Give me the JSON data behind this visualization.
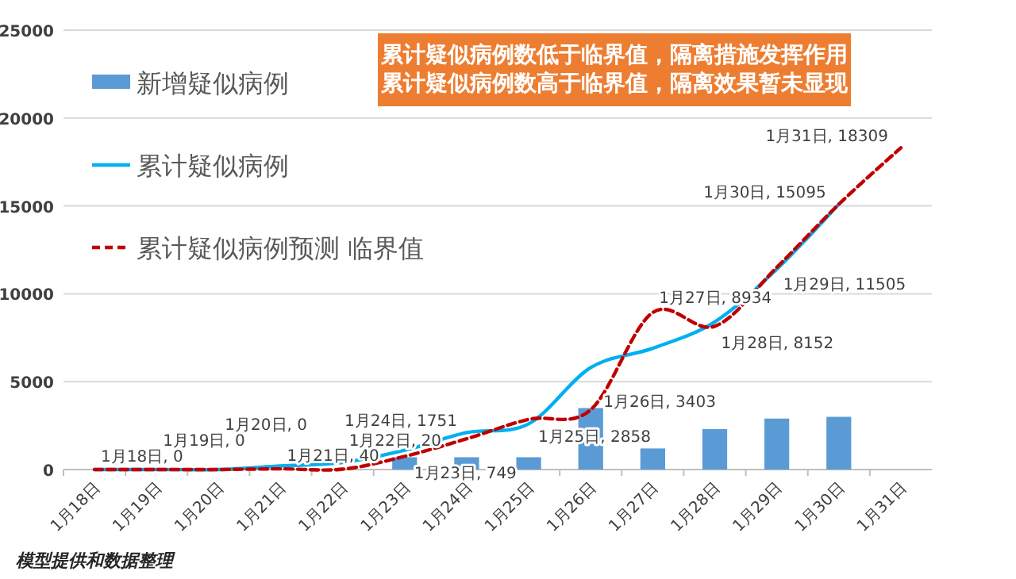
{
  "chart_data": {
    "type": "bar",
    "categories": [
      "1月18日",
      "1月19日",
      "1月20日",
      "1月21日",
      "1月22日",
      "1月23日",
      "1月24日",
      "1月25日",
      "1月26日",
      "1月27日",
      "1月28日",
      "1月29日",
      "1月30日",
      "1月31日"
    ],
    "series": [
      {
        "name": "新增疑似病例",
        "color": "#5b9bd5",
        "values": [
          null,
          null,
          null,
          null,
          null,
          700,
          700,
          700,
          3500,
          1200,
          2300,
          2900,
          3000,
          null
        ]
      },
      {
        "name": "累计疑似病例",
        "type": "line",
        "color": "#00b0f0",
        "values": [
          0,
          0,
          0,
          200,
          400,
          1100,
          2100,
          2600,
          5800,
          6900,
          8400,
          11400,
          15095,
          null
        ]
      },
      {
        "name": "累计疑似病例预测 临界值",
        "type": "line",
        "color": "#c00000",
        "line_style": "dashed",
        "values": [
          0,
          0,
          0,
          40,
          20,
          749,
          1751,
          2858,
          3403,
          8934,
          8152,
          11505,
          15095,
          18309
        ],
        "value_labels": [
          "1月18日, 0",
          "1月19日, 0",
          "1月20日, 0",
          "1月21日, 40",
          "1月22日, 20",
          "1月23日, 749",
          "1月24日, 1751",
          "1月25日, 2858",
          "1月26日, 3403",
          "1月27日, 8934",
          "1月28日, 8152",
          "1月29日, 11505",
          "1月30日, 15095",
          "1月31日, 18309"
        ]
      }
    ],
    "ylim": [
      0,
      25000
    ],
    "yticks": [
      0,
      5000,
      10000,
      15000,
      20000,
      25000
    ],
    "grid": "y",
    "legend": "top left",
    "annotations": [
      "累计疑似病例数低于临界值，隔离措施发挥作用",
      "累计疑似病例数高于临界值，隔离效果暂未显现",
      "模型提供和数据整理"
    ]
  }
}
